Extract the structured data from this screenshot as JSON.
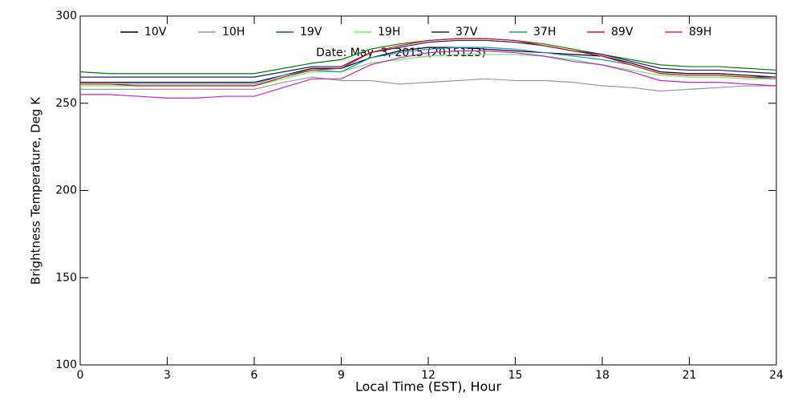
{
  "chart_data": {
    "type": "line",
    "annotation": "Date: May  3, 2015 (2015123)",
    "x_label": "Local Time (EST), Hour",
    "y_label": "Brightness Temperature, Deg K",
    "x": [
      0,
      1,
      2,
      3,
      4,
      5,
      6,
      7,
      8,
      9,
      10,
      11,
      12,
      13,
      14,
      15,
      16,
      17,
      18,
      19,
      20,
      21,
      22,
      23,
      24
    ],
    "xlim": [
      0,
      24
    ],
    "xticks": [
      0,
      3,
      6,
      9,
      12,
      15,
      18,
      21,
      24
    ],
    "ylim": [
      100,
      300
    ],
    "yticks": [
      100,
      150,
      200,
      250,
      300
    ],
    "grid": false,
    "series": [
      {
        "name": "10V",
        "color": "#000000",
        "values": [
          262,
          262,
          262,
          262,
          262,
          262,
          262,
          266,
          270,
          270,
          276,
          280,
          282,
          282,
          281,
          280,
          279,
          278,
          277,
          273,
          268,
          267,
          267,
          266,
          265
        ]
      },
      {
        "name": "10H",
        "color": "#9a9a9a",
        "values": [
          258,
          258,
          258,
          258,
          258,
          258,
          258,
          262,
          265,
          263,
          263,
          261,
          262,
          263,
          264,
          263,
          263,
          262,
          260,
          259,
          257,
          258,
          259,
          260,
          260
        ]
      },
      {
        "name": "19V",
        "color": "#008000",
        "values": [
          268,
          267,
          267,
          267,
          267,
          267,
          267,
          270,
          273,
          275,
          281,
          284,
          286,
          287,
          287,
          286,
          284,
          281,
          278,
          275,
          272,
          271,
          271,
          270,
          269
        ]
      },
      {
        "name": "19H",
        "color": "#66ee66",
        "values": [
          260,
          260,
          260,
          260,
          260,
          260,
          260,
          264,
          268,
          268,
          273,
          275,
          277,
          278,
          278,
          278,
          277,
          275,
          272,
          269,
          266,
          265,
          265,
          264,
          264
        ]
      },
      {
        "name": "37V",
        "color": "#1a1a8c",
        "values": [
          265,
          265,
          265,
          265,
          265,
          265,
          265,
          268,
          271,
          271,
          279,
          282,
          285,
          286,
          286,
          285,
          283,
          280,
          278,
          274,
          270,
          269,
          269,
          268,
          267
        ]
      },
      {
        "name": "37H",
        "color": "#1e90c8",
        "values": [
          261,
          261,
          261,
          261,
          261,
          261,
          261,
          266,
          269,
          268,
          276,
          279,
          281,
          282,
          282,
          281,
          279,
          277,
          275,
          272,
          267,
          266,
          266,
          265,
          264
        ]
      },
      {
        "name": "89V",
        "color": "#e01010",
        "values": [
          261,
          261,
          260,
          260,
          260,
          260,
          260,
          265,
          269,
          270,
          279,
          283,
          286,
          287,
          287,
          286,
          283,
          280,
          277,
          272,
          267,
          266,
          266,
          265,
          265
        ]
      },
      {
        "name": "89H",
        "color": "#cc22cc",
        "values": [
          255,
          255,
          254,
          253,
          253,
          254,
          254,
          259,
          264,
          264,
          272,
          276,
          279,
          280,
          280,
          279,
          277,
          274,
          272,
          268,
          263,
          262,
          262,
          261,
          260
        ]
      }
    ]
  }
}
